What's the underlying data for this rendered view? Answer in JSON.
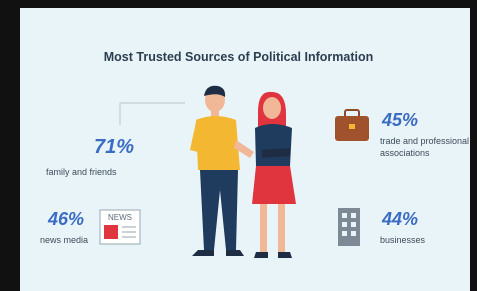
{
  "title": "Most Trusted Sources of Political Information",
  "items": [
    {
      "value": "71%",
      "label": "family and friends"
    },
    {
      "value": "46%",
      "label": "news media",
      "icon_text": "NEWS"
    },
    {
      "value": "45%",
      "label": "trade and professional associations"
    },
    {
      "value": "44%",
      "label": "businesses"
    }
  ]
}
